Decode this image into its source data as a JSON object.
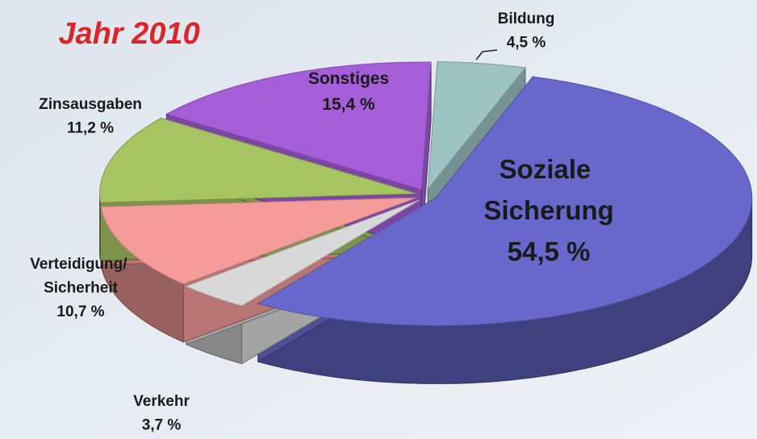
{
  "chart_data": {
    "type": "pie3d",
    "title": "Jahr 2010",
    "categories": [
      "Bildung",
      "Soziale Sicherung",
      "Verkehr",
      "Verteidigung/ Sicherheit",
      "Zinsausgaben",
      "Sonstiges"
    ],
    "values": [
      4.5,
      54.5,
      3.7,
      10.7,
      11.2,
      15.4
    ],
    "value_labels": [
      "4,5 %",
      "54,5 %",
      "3,7 %",
      "10,7 %",
      "11,2 %",
      "15,4 %"
    ],
    "colors": [
      "#9ec3c3",
      "#6868cc",
      "#d9d9d9",
      "#f59c9a",
      "#a6c462",
      "#a55ed8"
    ]
  }
}
